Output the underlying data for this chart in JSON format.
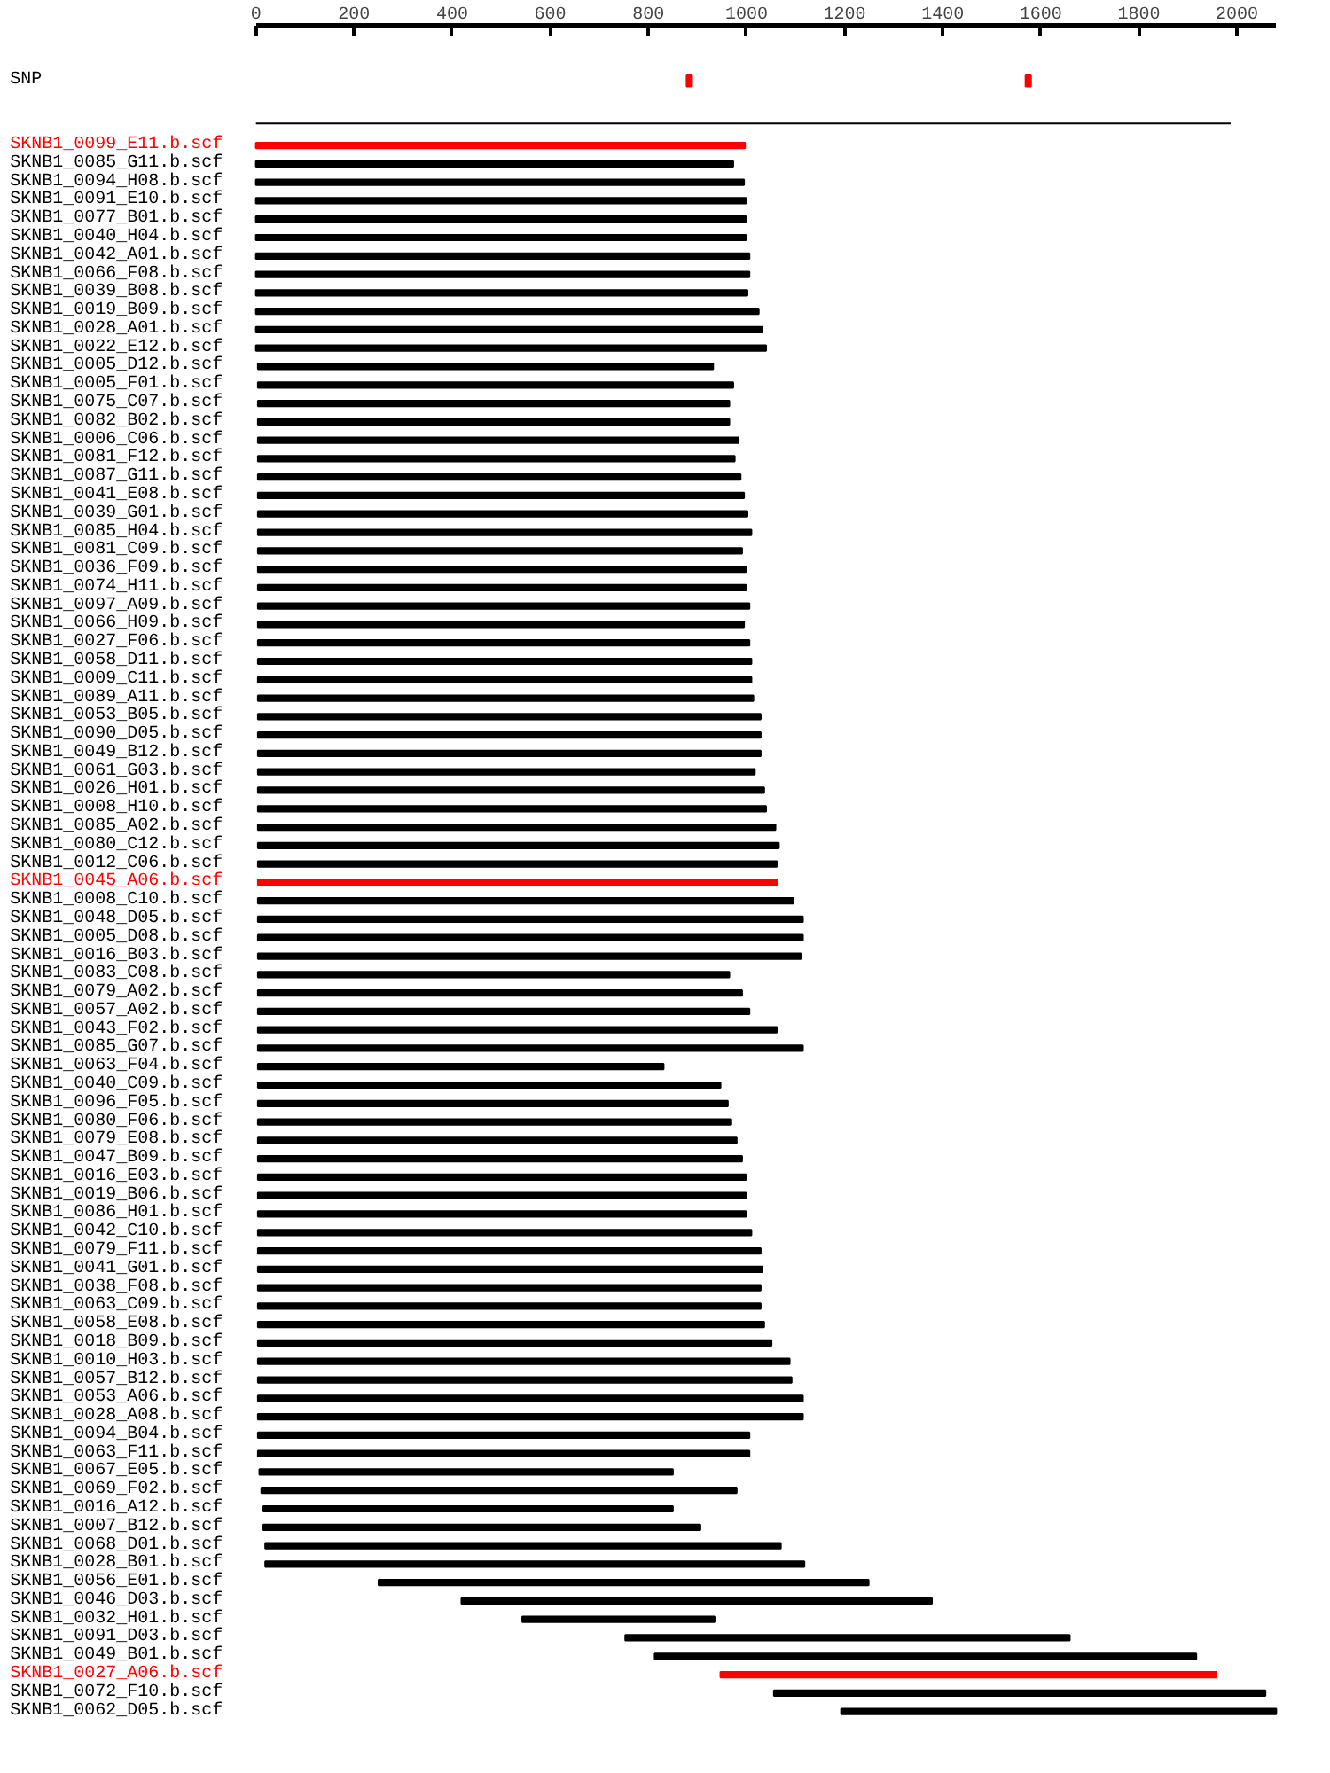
{
  "chart_data": {
    "type": "bar",
    "orientation": "horizontal",
    "xlim": [
      0,
      2080
    ],
    "xticks": [
      0,
      200,
      400,
      600,
      800,
      1000,
      1200,
      1400,
      1600,
      1800,
      2000
    ],
    "categories": [
      "SNP",
      "SKNB1_0099_E11.b.scf",
      "SKNB1_0085_G11.b.scf",
      "SKNB1_0094_H08.b.scf",
      "SKNB1_0091_E10.b.scf",
      "SKNB1_0077_B01.b.scf",
      "SKNB1_0040_H04.b.scf",
      "SKNB1_0042_A01.b.scf",
      "SKNB1_0066_F08.b.scf",
      "SKNB1_0039_B08.b.scf",
      "SKNB1_0019_B09.b.scf",
      "SKNB1_0028_A01.b.scf",
      "SKNB1_0022_E12.b.scf",
      "SKNB1_0005_D12.b.scf",
      "SKNB1_0005_F01.b.scf",
      "SKNB1_0075_C07.b.scf",
      "SKNB1_0082_B02.b.scf",
      "SKNB1_0006_C06.b.scf",
      "SKNB1_0081_F12.b.scf",
      "SKNB1_0087_G11.b.scf",
      "SKNB1_0041_E08.b.scf",
      "SKNB1_0039_G01.b.scf",
      "SKNB1_0085_H04.b.scf",
      "SKNB1_0081_C09.b.scf",
      "SKNB1_0036_F09.b.scf",
      "SKNB1_0074_H11.b.scf",
      "SKNB1_0097_A09.b.scf",
      "SKNB1_0066_H09.b.scf",
      "SKNB1_0027_F06.b.scf",
      "SKNB1_0058_D11.b.scf",
      "SKNB1_0009_C11.b.scf",
      "SKNB1_0089_A11.b.scf",
      "SKNB1_0053_B05.b.scf",
      "SKNB1_0090_D05.b.scf",
      "SKNB1_0049_B12.b.scf",
      "SKNB1_0061_G03.b.scf",
      "SKNB1_0026_H01.b.scf",
      "SKNB1_0008_H10.b.scf",
      "SKNB1_0085_A02.b.scf",
      "SKNB1_0080_C12.b.scf",
      "SKNB1_0012_C06.b.scf",
      "SKNB1_0045_A06.b.scf",
      "SKNB1_0008_C10.b.scf",
      "SKNB1_0048_D05.b.scf",
      "SKNB1_0005_D08.b.scf",
      "SKNB1_0016_B03.b.scf",
      "SKNB1_0083_C08.b.scf",
      "SKNB1_0079_A02.b.scf",
      "SKNB1_0057_A02.b.scf",
      "SKNB1_0043_F02.b.scf",
      "SKNB1_0085_G07.b.scf",
      "SKNB1_0063_F04.b.scf",
      "SKNB1_0040_C09.b.scf",
      "SKNB1_0096_F05.b.scf",
      "SKNB1_0080_F06.b.scf",
      "SKNB1_0079_E08.b.scf",
      "SKNB1_0047_B09.b.scf",
      "SKNB1_0016_E03.b.scf",
      "SKNB1_0019_B06.b.scf",
      "SKNB1_0086_H01.b.scf",
      "SKNB1_0042_C10.b.scf",
      "SKNB1_0079_F11.b.scf",
      "SKNB1_0041_G01.b.scf",
      "SKNB1_0038_F08.b.scf",
      "SKNB1_0063_C09.b.scf",
      "SKNB1_0058_E08.b.scf",
      "SKNB1_0018_B09.b.scf",
      "SKNB1_0010_H03.b.scf",
      "SKNB1_0057_B12.b.scf",
      "SKNB1_0053_A06.b.scf",
      "SKNB1_0028_A08.b.scf",
      "SKNB1_0094_B04.b.scf",
      "SKNB1_0063_F11.b.scf",
      "SKNB1_0067_E05.b.scf",
      "SKNB1_0069_F02.b.scf",
      "SKNB1_0016_A12.b.scf",
      "SKNB1_0007_B12.b.scf",
      "SKNB1_0068_D01.b.scf",
      "SKNB1_0028_B01.b.scf",
      "SKNB1_0056_E01.b.scf",
      "SKNB1_0046_D03.b.scf",
      "SKNB1_0032_H01.b.scf",
      "SKNB1_0091_D03.b.scf",
      "SKNB1_0049_B01.b.scf",
      "SKNB1_0027_A06.b.scf",
      "SKNB1_0072_F10.b.scf",
      "SKNB1_0062_D05.b.scf"
    ],
    "series": [
      {
        "values": [
          null,
          997,
          973,
          995,
          999,
          999,
          999,
          1006,
          1006,
          1002,
          1025,
          1032,
          1040,
          928,
          969,
          961,
          961,
          980,
          972,
          984,
          991,
          998,
          1006,
          987,
          995,
          995,
          1002,
          991,
          1002,
          1006,
          1006,
          1010,
          1025,
          1025,
          1025,
          1013,
          1032,
          1036,
          1055,
          1062,
          1058,
          1058,
          1092,
          1111,
          1111,
          1107,
          961,
          987,
          1002,
          1058,
          1111,
          827,
          943,
          958,
          965,
          976,
          987,
          995,
          995,
          995,
          1006,
          1025,
          1028,
          1025,
          1025,
          1032,
          1047,
          1084,
          1088,
          1111,
          1111,
          1002,
          1002,
          843,
          969,
          835,
          891,
          1051,
          1099,
          999,
          959,
          392,
          906,
          1104,
          1011,
          1002,
          887
        ],
        "base": [
          null,
          0,
          0,
          0,
          0,
          0,
          0,
          0,
          0,
          0,
          0,
          0,
          0,
          4,
          4,
          4,
          4,
          4,
          4,
          4,
          4,
          4,
          4,
          4,
          4,
          4,
          4,
          4,
          4,
          4,
          4,
          4,
          4,
          4,
          4,
          4,
          4,
          4,
          4,
          4,
          4,
          4,
          4,
          4,
          4,
          4,
          4,
          4,
          4,
          4,
          4,
          4,
          4,
          4,
          4,
          4,
          4,
          4,
          4,
          4,
          4,
          4,
          4,
          4,
          4,
          4,
          4,
          4,
          4,
          4,
          4,
          4,
          4,
          7,
          11,
          15,
          15,
          19,
          19,
          250,
          419,
          543,
          753,
          813,
          947,
          1056,
          1193
        ],
        "colors": [
          "#000000",
          "#ff0000",
          "#000000",
          "#000000",
          "#000000",
          "#000000",
          "#000000",
          "#000000",
          "#000000",
          "#000000",
          "#000000",
          "#000000",
          "#000000",
          "#000000",
          "#000000",
          "#000000",
          "#000000",
          "#000000",
          "#000000",
          "#000000",
          "#000000",
          "#000000",
          "#000000",
          "#000000",
          "#000000",
          "#000000",
          "#000000",
          "#000000",
          "#000000",
          "#000000",
          "#000000",
          "#000000",
          "#000000",
          "#000000",
          "#000000",
          "#000000",
          "#000000",
          "#000000",
          "#000000",
          "#000000",
          "#000000",
          "#ff0000",
          "#000000",
          "#000000",
          "#000000",
          "#000000",
          "#000000",
          "#000000",
          "#000000",
          "#000000",
          "#000000",
          "#000000",
          "#000000",
          "#000000",
          "#000000",
          "#000000",
          "#000000",
          "#000000",
          "#000000",
          "#000000",
          "#000000",
          "#000000",
          "#000000",
          "#000000",
          "#000000",
          "#000000",
          "#000000",
          "#000000",
          "#000000",
          "#000000",
          "#000000",
          "#000000",
          "#000000",
          "#000000",
          "#000000",
          "#000000",
          "#000000",
          "#000000",
          "#000000",
          "#000000",
          "#000000",
          "#000000",
          "#000000",
          "#000000",
          "#ff0000",
          "#000000",
          "#000000"
        ]
      },
      {
        "color": "#ff0000",
        "values": [
          11,
          null,
          null,
          null,
          null,
          null,
          null,
          null,
          null,
          null,
          null,
          null,
          null,
          null,
          null,
          null,
          null,
          null,
          null,
          null,
          null,
          null,
          null,
          null,
          null,
          null,
          null,
          null,
          null,
          null,
          null,
          null,
          null,
          null,
          null,
          null,
          null,
          null,
          null,
          null,
          null,
          null,
          null,
          null,
          null,
          null,
          null,
          null,
          null,
          null,
          null,
          null,
          null,
          null,
          null,
          null,
          null,
          null,
          null,
          null,
          null,
          null,
          null,
          null,
          null,
          null,
          null,
          null,
          null,
          null,
          null,
          null,
          null,
          null,
          null,
          null,
          null,
          null,
          null,
          null,
          null,
          null,
          null,
          null,
          null,
          null,
          null
        ],
        "base": [
          878,
          null,
          null,
          null,
          null,
          null,
          null,
          null,
          null,
          null,
          null,
          null,
          null,
          null,
          null,
          null,
          null,
          null,
          null,
          null,
          null,
          null,
          null,
          null,
          null,
          null,
          null,
          null,
          null,
          null,
          null,
          null,
          null,
          null,
          null,
          null,
          null,
          null,
          null,
          null,
          null,
          null,
          null,
          null,
          null,
          null,
          null,
          null,
          null,
          null,
          null,
          null,
          null,
          null,
          null,
          null,
          null,
          null,
          null,
          null,
          null,
          null,
          null,
          null,
          null,
          null,
          null,
          null,
          null,
          null,
          null,
          null,
          null,
          null,
          null,
          null,
          null,
          null,
          null,
          null,
          null,
          null,
          null,
          null,
          null,
          null,
          null
        ]
      },
      {
        "color": "#ff0000",
        "values": [
          11,
          null,
          null,
          null,
          null,
          null,
          null,
          null,
          null,
          null,
          null,
          null,
          null,
          null,
          null,
          null,
          null,
          null,
          null,
          null,
          null,
          null,
          null,
          null,
          null,
          null,
          null,
          null,
          null,
          null,
          null,
          null,
          null,
          null,
          null,
          null,
          null,
          null,
          null,
          null,
          null,
          null,
          null,
          null,
          null,
          null,
          null,
          null,
          null,
          null,
          null,
          null,
          null,
          null,
          null,
          null,
          null,
          null,
          null,
          null,
          null,
          null,
          null,
          null,
          null,
          null,
          null,
          null,
          null,
          null,
          null,
          null,
          null,
          null,
          null,
          null,
          null,
          null,
          null,
          null,
          null,
          null,
          null,
          null,
          null,
          null,
          null
        ],
        "base": [
          1569,
          null,
          null,
          null,
          null,
          null,
          null,
          null,
          null,
          null,
          null,
          null,
          null,
          null,
          null,
          null,
          null,
          null,
          null,
          null,
          null,
          null,
          null,
          null,
          null,
          null,
          null,
          null,
          null,
          null,
          null,
          null,
          null,
          null,
          null,
          null,
          null,
          null,
          null,
          null,
          null,
          null,
          null,
          null,
          null,
          null,
          null,
          null,
          null,
          null,
          null,
          null,
          null,
          null,
          null,
          null,
          null,
          null,
          null,
          null,
          null,
          null,
          null,
          null,
          null,
          null,
          null,
          null,
          null,
          null,
          null,
          null,
          null,
          null,
          null,
          null,
          null,
          null,
          null,
          null,
          null,
          null,
          null,
          null,
          null,
          null,
          null
        ]
      }
    ]
  }
}
